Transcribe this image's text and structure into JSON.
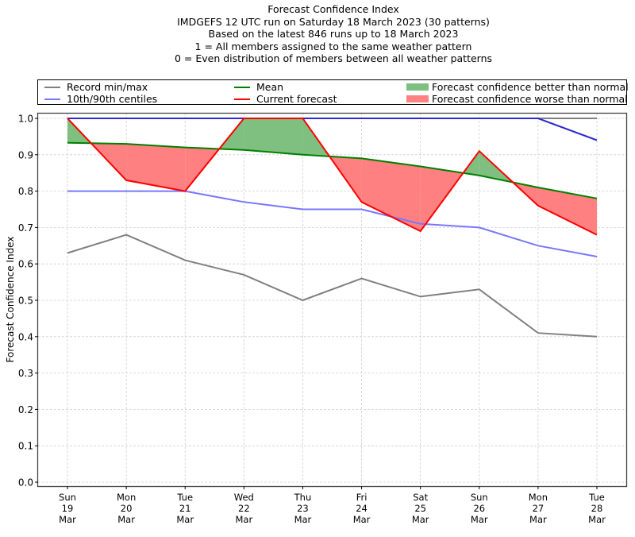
{
  "chart_data": {
    "type": "line",
    "title_lines": [
      "Forecast Confidence Index",
      "IMDGEFS 12 UTC run on Saturday 18 March 2023 (30 patterns)",
      "Based on the latest 846 runs up to 18 March 2023",
      "1 = All members assigned to the same weather pattern",
      "0 = Even distribution of members between all weather patterns"
    ],
    "xlabel": "",
    "ylabel": "Forecast Confidence Index",
    "ylim": [
      0.0,
      1.0
    ],
    "yticks": [
      "0.0",
      "0.1",
      "0.2",
      "0.3",
      "0.4",
      "0.5",
      "0.6",
      "0.7",
      "0.8",
      "0.9",
      "1.0"
    ],
    "grid": true,
    "legend_position": "top (above plot, 3 columns)",
    "categories": [
      {
        "day": "Sun",
        "date": "19",
        "month": "Mar"
      },
      {
        "day": "Mon",
        "date": "20",
        "month": "Mar"
      },
      {
        "day": "Tue",
        "date": "21",
        "month": "Mar"
      },
      {
        "day": "Wed",
        "date": "22",
        "month": "Mar"
      },
      {
        "day": "Thu",
        "date": "23",
        "month": "Mar"
      },
      {
        "day": "Fri",
        "date": "24",
        "month": "Mar"
      },
      {
        "day": "Sat",
        "date": "25",
        "month": "Mar"
      },
      {
        "day": "Sun",
        "date": "26",
        "month": "Mar"
      },
      {
        "day": "Mon",
        "date": "27",
        "month": "Mar"
      },
      {
        "day": "Tue",
        "date": "28",
        "month": "Mar"
      }
    ],
    "series": [
      {
        "name": "Record max",
        "legend_group": "Record min/max",
        "color": "#808080",
        "values": [
          1.0,
          1.0,
          1.0,
          1.0,
          1.0,
          1.0,
          1.0,
          1.0,
          1.0,
          1.0
        ]
      },
      {
        "name": "Record min",
        "legend_group": "Record min/max",
        "color": "#808080",
        "values": [
          0.63,
          0.68,
          0.61,
          0.57,
          0.5,
          0.56,
          0.51,
          0.53,
          0.41,
          0.4
        ]
      },
      {
        "name": "90th centile",
        "legend_group": "10th/90th centiles",
        "color": "#7777ff",
        "values": [
          1.0,
          1.0,
          1.0,
          1.0,
          1.0,
          1.0,
          1.0,
          1.0,
          1.0,
          0.94
        ]
      },
      {
        "name": "10th centile",
        "legend_group": "10th/90th centiles",
        "color": "#7777ff",
        "values": [
          0.8,
          0.8,
          0.8,
          0.77,
          0.75,
          0.75,
          0.71,
          0.7,
          0.65,
          0.62
        ]
      },
      {
        "name": "Mean",
        "legend_group": "Mean",
        "color": "#008000",
        "values": [
          0.933,
          0.93,
          0.92,
          0.913,
          0.9,
          0.89,
          0.868,
          0.843,
          0.81,
          0.78
        ]
      },
      {
        "name": "Current forecast",
        "legend_group": "Current forecast",
        "color": "#ff0000",
        "values": [
          1.0,
          0.83,
          0.8,
          1.0,
          1.0,
          0.77,
          0.69,
          0.91,
          0.76,
          0.68
        ]
      }
    ],
    "fills": {
      "better": {
        "label": "Forecast confidence better than normal",
        "color": "#7fbf7f"
      },
      "worse": {
        "label": "Forecast confidence worse than normal",
        "color": "#ff8080"
      }
    },
    "legend": [
      {
        "label": "Record min/max",
        "kind": "line",
        "color": "#808080"
      },
      {
        "label": "10th/90th centiles",
        "kind": "line",
        "color": "#7777ff"
      },
      {
        "label": "Mean",
        "kind": "line",
        "color": "#008000"
      },
      {
        "label": "Current forecast",
        "kind": "line",
        "color": "#ff0000"
      },
      {
        "label": "Forecast confidence better than normal",
        "kind": "patch",
        "color": "#7fbf7f"
      },
      {
        "label": "Forecast confidence worse than normal",
        "kind": "patch",
        "color": "#ff8080"
      }
    ]
  }
}
